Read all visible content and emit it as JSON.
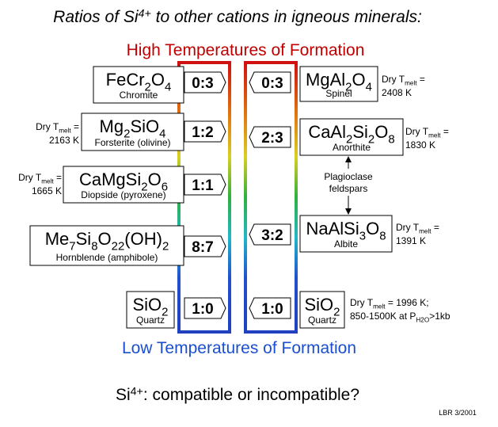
{
  "title": [
    "Ratios of Si",
    "4+",
    " to other cations in igneous minerals:"
  ],
  "high_label": "High Temperatures of Formation",
  "low_label": "Low Temperatures of Formation",
  "question": [
    "Si",
    "4+",
    ": compatible or incompatible?"
  ],
  "credit": "LBR 3/2001",
  "left_minerals": [
    {
      "formula": [
        "FeCr",
        "2",
        "O",
        "4"
      ],
      "name": "Chromite",
      "ratio": "0:3",
      "note": []
    },
    {
      "formula": [
        "Mg",
        "2",
        "SiO",
        "4"
      ],
      "name": "Forsterite (olivine)",
      "ratio": "1:2",
      "note": [
        [
          "Dry T",
          "melt",
          " ="
        ],
        [
          "2163 K"
        ]
      ]
    },
    {
      "formula": [
        "CaMgSi",
        "2",
        "O",
        "6"
      ],
      "name": "Diopside (pyroxene)",
      "ratio": "1:1",
      "note": [
        [
          "Dry T",
          "melt",
          " ="
        ],
        [
          "1665 K"
        ]
      ]
    },
    {
      "formula": [
        "Me",
        "7",
        "Si",
        "8",
        "O",
        "22",
        "(OH)",
        "2"
      ],
      "name": "Hornblende (amphibole)",
      "ratio": "8:7",
      "note": []
    },
    {
      "formula": [
        "SiO",
        "2"
      ],
      "name": "Quartz",
      "ratio": "1:0",
      "note": []
    }
  ],
  "right_minerals": [
    {
      "formula": [
        "MgAl",
        "2",
        "O",
        "4"
      ],
      "name": "Spinel",
      "ratio": "0:3",
      "note": [
        [
          "Dry T",
          "melt",
          " ="
        ],
        [
          "2408 K"
        ]
      ]
    },
    {
      "formula": [
        "CaAl",
        "2",
        "Si",
        "2",
        "O",
        "8"
      ],
      "name": "Anorthite",
      "ratio": "2:3",
      "note": [
        [
          "Dry T",
          "melt",
          " ="
        ],
        [
          "1830 K"
        ]
      ]
    },
    {
      "formula": [
        "NaAlSi",
        "3",
        "O",
        "8"
      ],
      "name": "Albite",
      "ratio": "3:2",
      "note": [
        [
          "Dry T",
          "melt",
          " ="
        ],
        [
          "1391 K"
        ]
      ]
    },
    {
      "formula": [
        "SiO",
        "2"
      ],
      "name": "Quartz",
      "ratio": "1:0",
      "note": [
        [
          "Dry T",
          "melt",
          " = 1996 K;"
        ],
        [
          "850-1500K at P",
          "H2O",
          ">1kb"
        ]
      ]
    }
  ],
  "plagioclase": [
    "Plagioclase",
    "feldspars"
  ]
}
